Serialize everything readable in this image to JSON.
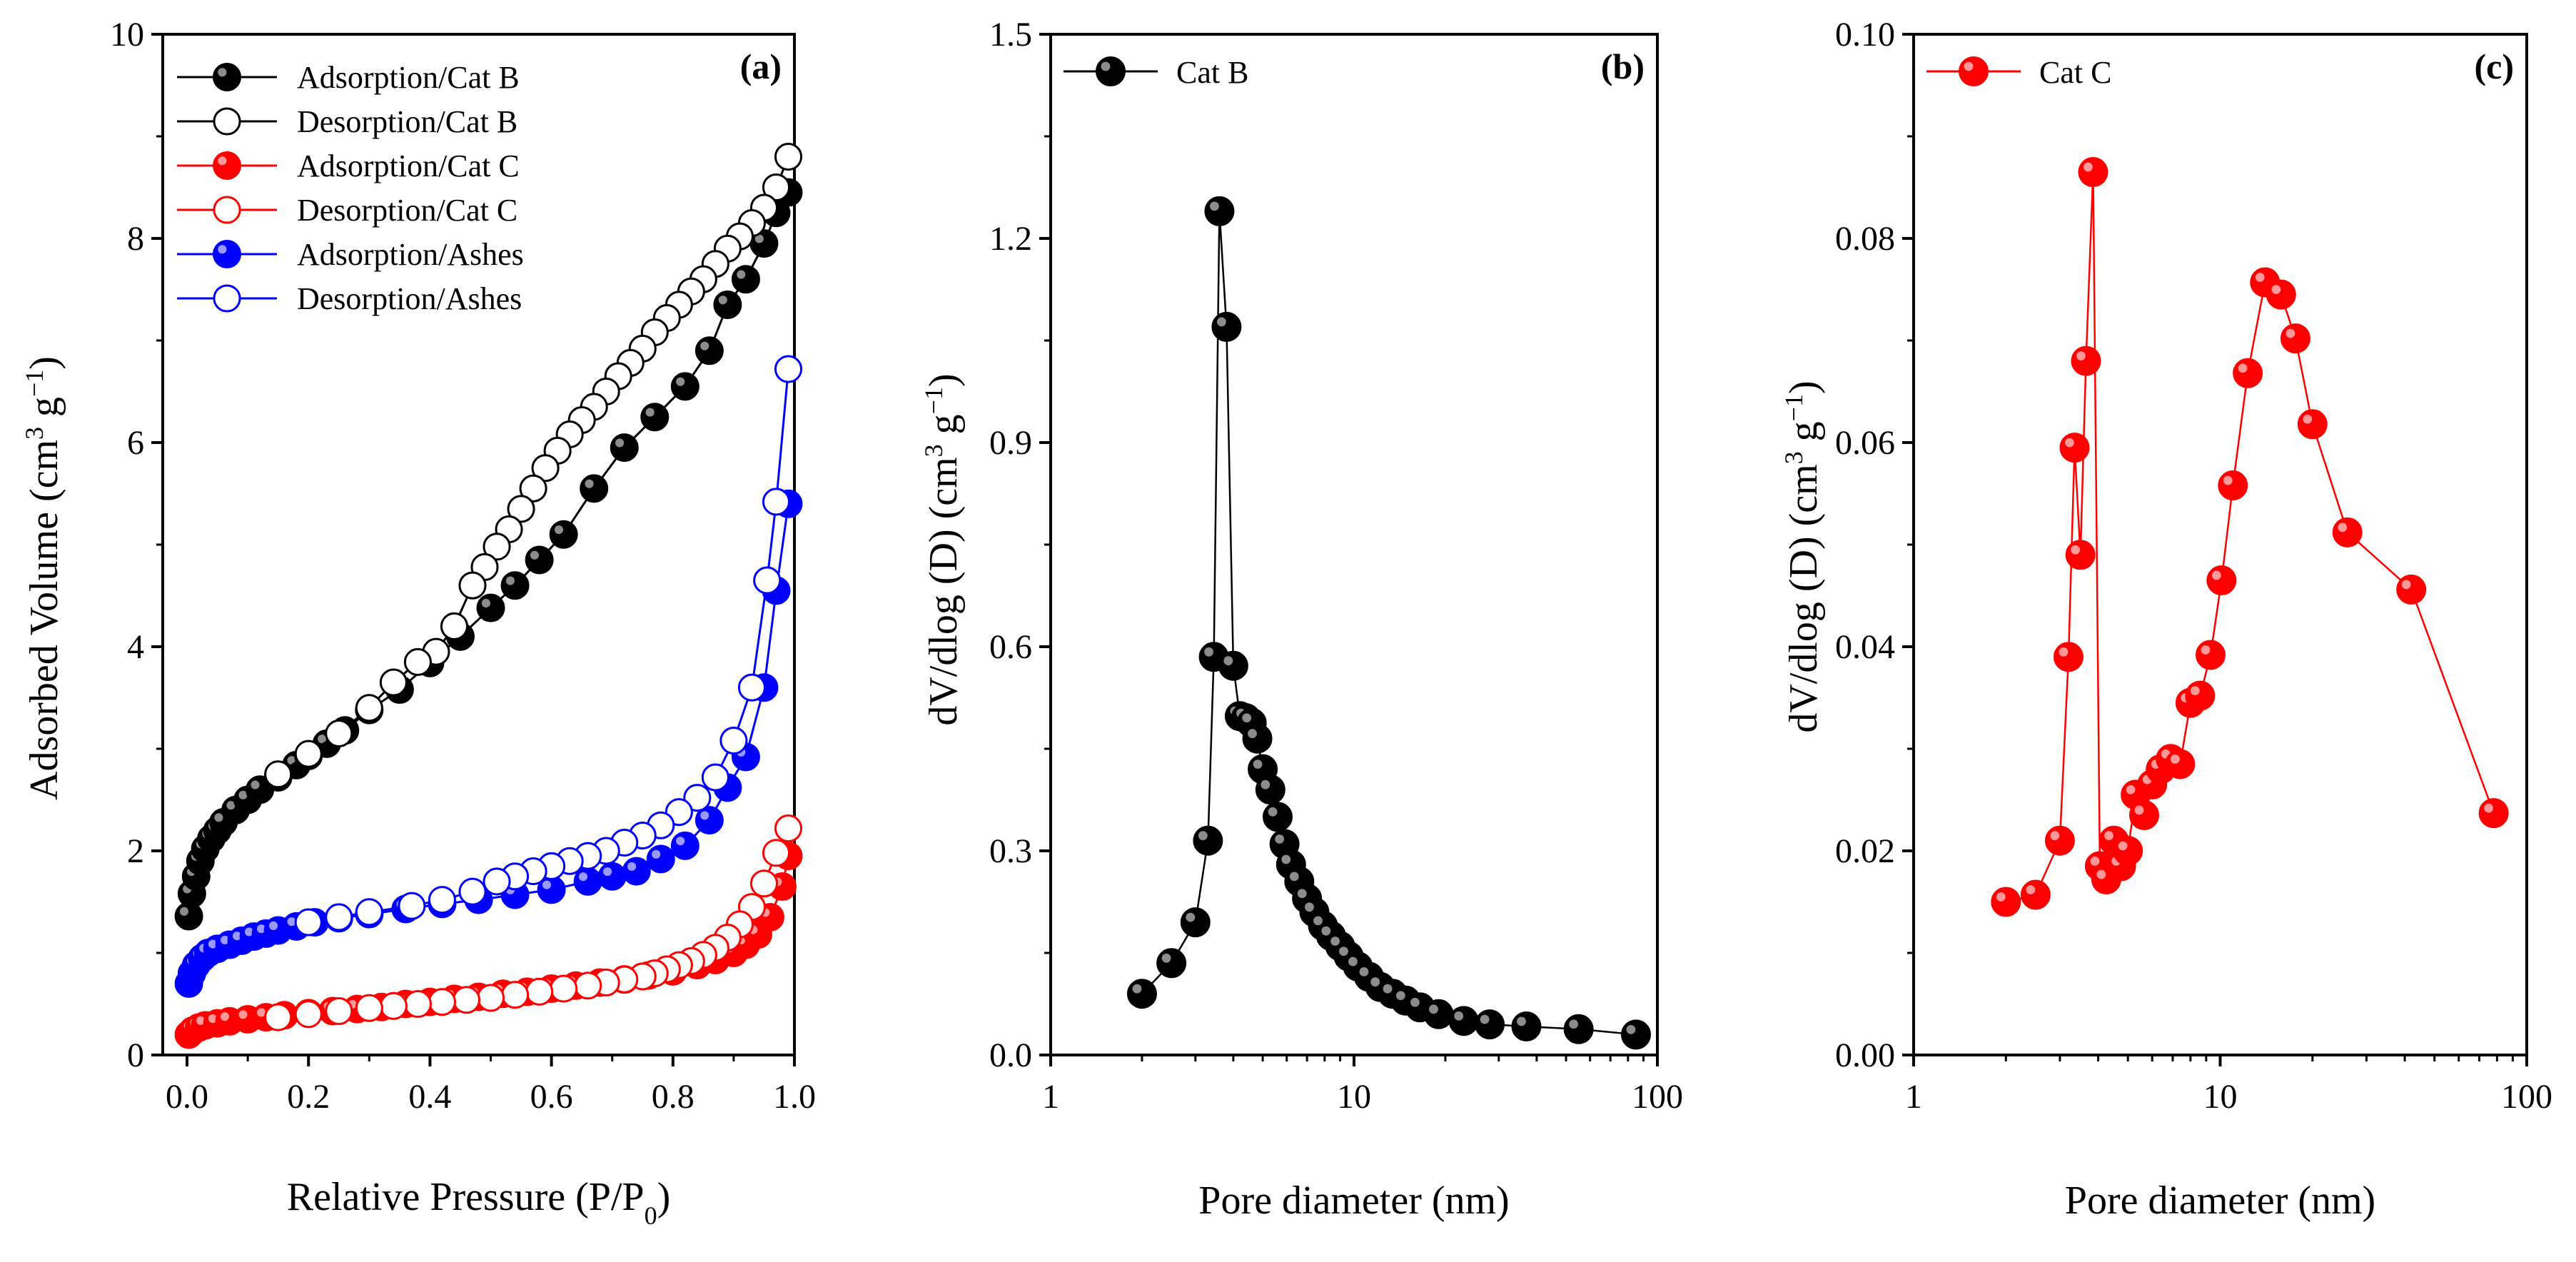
{
  "chart_data": [
    {
      "id": "a",
      "type": "scatter",
      "panel_label": "(a)",
      "xlabel": "Relative Pressure (P/P",
      "xlabel_sub": "0",
      "xlabel_end": ")",
      "ylabel": "Adsorbed Volume (cm",
      "ylabel_sup": "3",
      "ylabel_mid": " g",
      "ylabel_sup2": "−1",
      "ylabel_end": ")",
      "xlim": [
        -0.04,
        1.0
      ],
      "ylim": [
        0,
        10
      ],
      "xticks": [
        0.0,
        0.2,
        0.4,
        0.6,
        0.8,
        1.0
      ],
      "xtick_labels": [
        "0.0",
        "0.2",
        "0.4",
        "0.6",
        "0.8",
        "1.0"
      ],
      "yticks": [
        0,
        2,
        4,
        6,
        8,
        10
      ],
      "ytick_labels": [
        "0",
        "2",
        "4",
        "6",
        "8",
        "10"
      ],
      "legend_position": "top-left",
      "series": [
        {
          "name": "Adsorption/Cat B",
          "color": "#000000",
          "filled": true,
          "x": [
            0.003,
            0.008,
            0.015,
            0.022,
            0.03,
            0.04,
            0.05,
            0.06,
            0.08,
            0.1,
            0.12,
            0.15,
            0.18,
            0.2,
            0.23,
            0.26,
            0.3,
            0.35,
            0.4,
            0.45,
            0.5,
            0.54,
            0.58,
            0.62,
            0.67,
            0.72,
            0.77,
            0.82,
            0.86,
            0.89,
            0.92,
            0.95,
            0.97,
            0.99
          ],
          "y": [
            1.36,
            1.58,
            1.75,
            1.9,
            2.02,
            2.12,
            2.2,
            2.28,
            2.4,
            2.5,
            2.6,
            2.72,
            2.84,
            2.93,
            3.05,
            3.18,
            3.38,
            3.58,
            3.84,
            4.1,
            4.38,
            4.6,
            4.85,
            5.1,
            5.55,
            5.95,
            6.25,
            6.55,
            6.9,
            7.35,
            7.6,
            7.95,
            8.25,
            8.45
          ]
        },
        {
          "name": "Desorption/Cat B",
          "color": "#000000",
          "filled": false,
          "x": [
            0.99,
            0.97,
            0.95,
            0.93,
            0.91,
            0.89,
            0.87,
            0.85,
            0.83,
            0.81,
            0.79,
            0.77,
            0.75,
            0.73,
            0.71,
            0.69,
            0.67,
            0.65,
            0.63,
            0.61,
            0.59,
            0.57,
            0.55,
            0.53,
            0.51,
            0.49,
            0.47,
            0.44,
            0.41,
            0.38,
            0.34,
            0.3,
            0.25,
            0.2,
            0.15
          ],
          "y": [
            8.8,
            8.5,
            8.3,
            8.15,
            8.02,
            7.9,
            7.75,
            7.6,
            7.48,
            7.35,
            7.22,
            7.08,
            6.92,
            6.78,
            6.65,
            6.5,
            6.35,
            6.22,
            6.08,
            5.92,
            5.75,
            5.55,
            5.35,
            5.15,
            4.98,
            4.78,
            4.6,
            4.2,
            3.95,
            3.85,
            3.65,
            3.4,
            3.15,
            2.95,
            2.75
          ]
        },
        {
          "name": "Adsorption/Cat C",
          "color": "#ff0000",
          "filled": true,
          "x": [
            0.003,
            0.01,
            0.02,
            0.03,
            0.05,
            0.07,
            0.1,
            0.13,
            0.16,
            0.2,
            0.24,
            0.28,
            0.32,
            0.36,
            0.4,
            0.44,
            0.48,
            0.52,
            0.56,
            0.6,
            0.64,
            0.68,
            0.72,
            0.76,
            0.8,
            0.84,
            0.87,
            0.9,
            0.92,
            0.94,
            0.96,
            0.98,
            0.99
          ],
          "y": [
            0.2,
            0.24,
            0.27,
            0.29,
            0.31,
            0.33,
            0.35,
            0.37,
            0.39,
            0.41,
            0.43,
            0.45,
            0.47,
            0.5,
            0.52,
            0.55,
            0.57,
            0.6,
            0.62,
            0.65,
            0.68,
            0.71,
            0.74,
            0.78,
            0.82,
            0.88,
            0.93,
            1.0,
            1.08,
            1.18,
            1.35,
            1.65,
            1.95
          ]
        },
        {
          "name": "Desorption/Cat C",
          "color": "#ff0000",
          "filled": false,
          "x": [
            0.99,
            0.97,
            0.95,
            0.93,
            0.91,
            0.89,
            0.87,
            0.85,
            0.83,
            0.81,
            0.79,
            0.77,
            0.75,
            0.72,
            0.69,
            0.66,
            0.62,
            0.58,
            0.54,
            0.5,
            0.46,
            0.42,
            0.38,
            0.34,
            0.3,
            0.25,
            0.2,
            0.15
          ],
          "y": [
            2.22,
            1.98,
            1.68,
            1.45,
            1.28,
            1.15,
            1.05,
            0.98,
            0.92,
            0.88,
            0.84,
            0.8,
            0.77,
            0.74,
            0.71,
            0.68,
            0.65,
            0.62,
            0.59,
            0.56,
            0.54,
            0.52,
            0.5,
            0.48,
            0.46,
            0.43,
            0.4,
            0.37
          ]
        },
        {
          "name": "Adsorption/Ashes",
          "color": "#0000ff",
          "filled": true,
          "x": [
            0.003,
            0.008,
            0.015,
            0.025,
            0.035,
            0.05,
            0.07,
            0.09,
            0.11,
            0.13,
            0.15,
            0.18,
            0.21,
            0.25,
            0.3,
            0.36,
            0.42,
            0.48,
            0.54,
            0.6,
            0.66,
            0.7,
            0.74,
            0.78,
            0.82,
            0.86,
            0.89,
            0.92,
            0.95,
            0.97,
            0.99
          ],
          "y": [
            0.7,
            0.8,
            0.88,
            0.95,
            1.0,
            1.04,
            1.08,
            1.12,
            1.16,
            1.19,
            1.22,
            1.26,
            1.3,
            1.34,
            1.38,
            1.43,
            1.48,
            1.52,
            1.57,
            1.62,
            1.7,
            1.75,
            1.8,
            1.92,
            2.05,
            2.3,
            2.62,
            2.92,
            3.6,
            4.55,
            5.4
          ]
        },
        {
          "name": "Desorption/Ashes",
          "color": "#0000ff",
          "filled": false,
          "x": [
            0.99,
            0.97,
            0.955,
            0.93,
            0.9,
            0.87,
            0.84,
            0.81,
            0.78,
            0.75,
            0.72,
            0.69,
            0.66,
            0.63,
            0.6,
            0.57,
            0.54,
            0.51,
            0.47,
            0.42,
            0.37,
            0.3,
            0.25,
            0.2
          ],
          "y": [
            6.72,
            5.42,
            4.65,
            3.6,
            3.08,
            2.72,
            2.52,
            2.38,
            2.25,
            2.15,
            2.08,
            2.0,
            1.95,
            1.9,
            1.85,
            1.8,
            1.75,
            1.7,
            1.6,
            1.52,
            1.46,
            1.4,
            1.35,
            1.3
          ]
        }
      ]
    },
    {
      "id": "b",
      "type": "line",
      "panel_label": "(b)",
      "xlabel": "Pore diameter (nm)",
      "ylabel": "dV/dlog (D) (cm",
      "ylabel_sup": "3",
      "ylabel_mid": " g",
      "ylabel_sup2": "−1",
      "ylabel_end": ")",
      "xscale": "log",
      "xlim": [
        1,
        100
      ],
      "ylim": [
        0,
        1.5
      ],
      "xticks": [
        1,
        10,
        100
      ],
      "xtick_labels": [
        "1",
        "10",
        "100"
      ],
      "yticks": [
        0.0,
        0.3,
        0.6,
        0.9,
        1.2,
        1.5
      ],
      "ytick_labels": [
        "0.0",
        "0.3",
        "0.6",
        "0.9",
        "1.2",
        "1.5"
      ],
      "legend_position": "top-left",
      "series": [
        {
          "name": "Cat B",
          "color": "#000000",
          "filled": true,
          "x": [
            2.0,
            2.5,
            3.0,
            3.3,
            3.45,
            3.6,
            3.8,
            4.0,
            4.2,
            4.4,
            4.6,
            4.8,
            5.0,
            5.3,
            5.6,
            5.9,
            6.2,
            6.6,
            7.0,
            7.4,
            7.9,
            8.4,
            9.0,
            9.6,
            10.3,
            11.2,
            12.2,
            13.4,
            14.8,
            16.5,
            19,
            23,
            28,
            37,
            55,
            85
          ],
          "y": [
            0.09,
            0.135,
            0.195,
            0.315,
            0.585,
            1.24,
            1.07,
            0.572,
            0.498,
            0.495,
            0.488,
            0.465,
            0.42,
            0.39,
            0.35,
            0.31,
            0.28,
            0.255,
            0.23,
            0.21,
            0.19,
            0.175,
            0.16,
            0.145,
            0.13,
            0.115,
            0.1,
            0.09,
            0.08,
            0.07,
            0.06,
            0.05,
            0.045,
            0.042,
            0.038,
            0.03
          ]
        }
      ]
    },
    {
      "id": "c",
      "type": "line",
      "panel_label": "(c)",
      "xlabel": "Pore diameter (nm)",
      "ylabel": "dV/dlog (D) (cm",
      "ylabel_sup": "3",
      "ylabel_mid": " g",
      "ylabel_sup2": "−1",
      "ylabel_end": ")",
      "xscale": "log",
      "xlim": [
        1,
        100
      ],
      "ylim": [
        0,
        0.1
      ],
      "xticks": [
        1,
        10,
        100
      ],
      "xtick_labels": [
        "1",
        "10",
        "100"
      ],
      "yticks": [
        0.0,
        0.02,
        0.04,
        0.06,
        0.08,
        0.1
      ],
      "ytick_labels": [
        "0.00",
        "0.02",
        "0.04",
        "0.06",
        "0.08",
        "0.10"
      ],
      "legend_position": "top-left",
      "series": [
        {
          "name": "Cat C",
          "color": "#ff0000",
          "filled": true,
          "x": [
            2.0,
            2.5,
            3.0,
            3.2,
            3.35,
            3.5,
            3.65,
            3.85,
            4.05,
            4.25,
            4.5,
            4.75,
            5.0,
            5.3,
            5.65,
            6.0,
            6.4,
            6.9,
            7.4,
            8.0,
            8.6,
            9.3,
            10.1,
            11.0,
            12.3,
            14.0,
            15.8,
            17.6,
            20.0,
            26.0,
            42.0,
            78.0
          ],
          "y": [
            0.015,
            0.0157,
            0.021,
            0.039,
            0.0595,
            0.049,
            0.068,
            0.0865,
            0.0185,
            0.0172,
            0.021,
            0.0185,
            0.02,
            0.0255,
            0.0235,
            0.0265,
            0.028,
            0.029,
            0.0285,
            0.0345,
            0.0352,
            0.0392,
            0.0465,
            0.0558,
            0.0668,
            0.0757,
            0.0745,
            0.0702,
            0.0618,
            0.0512,
            0.0456,
            0.0237
          ]
        }
      ]
    }
  ]
}
